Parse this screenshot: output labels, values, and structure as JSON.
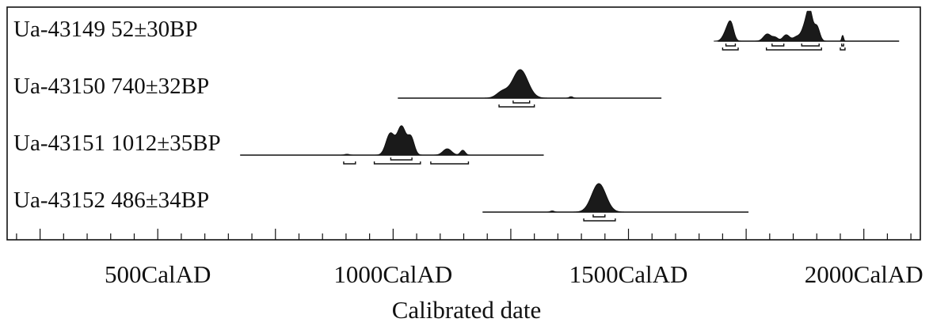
{
  "chart_data": {
    "type": "area",
    "title": "",
    "xlabel": "Calibrated date",
    "ylabel": "",
    "xlim": [
      180,
      2120
    ],
    "x_ticks": [
      {
        "value": 500,
        "label": "500CalAD"
      },
      {
        "value": 1000,
        "label": "1000CalAD"
      },
      {
        "value": 1500,
        "label": "1500CalAD"
      },
      {
        "value": 2000,
        "label": "2000CalAD"
      }
    ],
    "x_minor_step": 50,
    "grid": false,
    "series": [
      {
        "name": "Ua-43149",
        "label": "Ua-43149  52±30BP",
        "range": [
          1690,
          2075
        ],
        "peaks": [
          {
            "center": 1710,
            "width": 8,
            "height": 0.38
          },
          {
            "center": 1718,
            "width": 6,
            "height": 0.45
          },
          {
            "center": 1795,
            "width": 8,
            "height": 0.25
          },
          {
            "center": 1812,
            "width": 6,
            "height": 0.12
          },
          {
            "center": 1835,
            "width": 7,
            "height": 0.22
          },
          {
            "center": 1858,
            "width": 8,
            "height": 0.16
          },
          {
            "center": 1875,
            "width": 7,
            "height": 0.48
          },
          {
            "center": 1885,
            "width": 6,
            "height": 0.98
          },
          {
            "center": 1900,
            "width": 6,
            "height": 0.52
          },
          {
            "center": 1955,
            "width": 2,
            "height": 0.2
          }
        ],
        "one_sigma": [
          [
            1707,
            1727
          ],
          [
            1805,
            1830
          ],
          [
            1868,
            1905
          ],
          [
            1953,
            1957
          ]
        ],
        "two_sigma": [
          [
            1700,
            1733
          ],
          [
            1793,
            1910
          ],
          [
            1950,
            1960
          ]
        ]
      },
      {
        "name": "Ua-43150",
        "label": "Ua-43150  740±32BP",
        "range": [
          1010,
          1570
        ],
        "peaks": [
          {
            "center": 1270,
            "width": 16,
            "height": 1.0
          },
          {
            "center": 1232,
            "width": 12,
            "height": 0.22
          },
          {
            "center": 1378,
            "width": 4,
            "height": 0.05
          }
        ],
        "one_sigma": [
          [
            1255,
            1290
          ]
        ],
        "two_sigma": [
          [
            1225,
            1300
          ]
        ]
      },
      {
        "name": "Ua-43151",
        "label": "Ua-43151  1012±35BP",
        "range": [
          675,
          1320
        ],
        "peaks": [
          {
            "center": 994,
            "width": 9,
            "height": 0.75
          },
          {
            "center": 1018,
            "width": 9,
            "height": 1.0
          },
          {
            "center": 1038,
            "width": 7,
            "height": 0.6
          },
          {
            "center": 1115,
            "width": 9,
            "height": 0.22
          },
          {
            "center": 1148,
            "width": 5,
            "height": 0.17
          },
          {
            "center": 902,
            "width": 5,
            "height": 0.03
          }
        ],
        "one_sigma": [
          [
            995,
            1040
          ]
        ],
        "two_sigma": [
          [
            895,
            920
          ],
          [
            960,
            1058
          ],
          [
            1080,
            1160
          ]
        ]
      },
      {
        "name": "Ua-43152",
        "label": "Ua-43152  486±34BP",
        "range": [
          1190,
          1755
        ],
        "peaks": [
          {
            "center": 1437,
            "width": 15,
            "height": 1.0
          },
          {
            "center": 1338,
            "width": 4,
            "height": 0.04
          }
        ],
        "one_sigma": [
          [
            1425,
            1450
          ]
        ],
        "two_sigma": [
          [
            1405,
            1472
          ]
        ]
      }
    ]
  }
}
